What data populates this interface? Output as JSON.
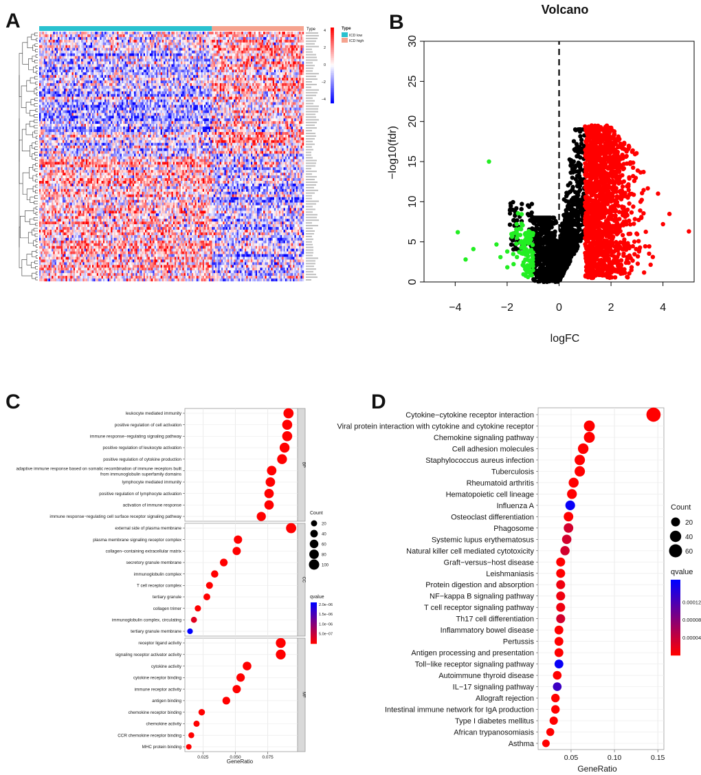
{
  "panel_letters": {
    "a": "A",
    "b": "B",
    "c": "C",
    "d": "D"
  },
  "chart_data": [
    {
      "panel": "A",
      "type": "heatmap",
      "legend": {
        "scale_title": "",
        "scale_ticks": [
          "4",
          "2",
          "0",
          "−2",
          "−4"
        ],
        "type_title": "Type",
        "type_entries": [
          {
            "label": "ICD low",
            "color": "#29c1cf"
          },
          {
            "label": "ICD high",
            "color": "#f5a38f"
          }
        ]
      },
      "annotation_label": "Type",
      "groups": {
        "icd_low_fraction": 0.65,
        "icd_high_fraction": 0.35
      },
      "colors": {
        "low": "#1010ff",
        "mid": "#ffffff",
        "high": "#ff1010"
      }
    },
    {
      "panel": "B",
      "type": "scatter",
      "title": "Volcano",
      "xlabel": "logFC",
      "ylabel": "−log10(fdr)",
      "xlim": [
        -5.2,
        5.2
      ],
      "ylim": [
        0,
        30
      ],
      "xticks": [
        -4,
        -2,
        0,
        2,
        4
      ],
      "xtick_labels": [
        "−4",
        "−2",
        "0",
        "2",
        "4"
      ],
      "yticks": [
        0,
        5,
        10,
        15,
        20,
        25,
        30
      ],
      "ytick_labels": [
        "0",
        "5",
        "10",
        "15",
        "20",
        "25",
        "30"
      ],
      "vline_x": 0,
      "colors": {
        "down": "#22ee22",
        "ns": "#000000",
        "up": "#ff0000"
      },
      "outliers": [
        {
          "x": -2.7,
          "y": 15.0,
          "group": "down"
        },
        {
          "x": -3.9,
          "y": 6.2,
          "group": "down"
        },
        {
          "x": -3.6,
          "y": 2.8,
          "group": "down"
        },
        {
          "x": -3.3,
          "y": 4.1,
          "group": "down"
        },
        {
          "x": 5.0,
          "y": 6.3,
          "group": "up"
        },
        {
          "x": 4.0,
          "y": 7.2,
          "group": "up"
        }
      ]
    },
    {
      "panel": "C",
      "type": "scatter",
      "xlabel": "GeneRatio",
      "xlim": [
        0.011,
        0.098
      ],
      "xticks": [
        0.025,
        0.05,
        0.075
      ],
      "xtick_labels": [
        "0.025",
        "0.050",
        "0.075"
      ],
      "facets": [
        {
          "label": "BP",
          "terms": [
            {
              "term": "leukocyte mediated immunity",
              "ratio": 0.091,
              "count": 95,
              "q": 0.0
            },
            {
              "term": "positive regulation of cell activation",
              "ratio": 0.09,
              "count": 93,
              "q": 0.0
            },
            {
              "term": "immune response−regulating signaling pathway",
              "ratio": 0.09,
              "count": 93,
              "q": 0.0
            },
            {
              "term": "positive regulation of leukocyte activation",
              "ratio": 0.088,
              "count": 90,
              "q": 0.0
            },
            {
              "term": "positive regulation of cytokine production",
              "ratio": 0.086,
              "count": 88,
              "q": 0.0
            },
            {
              "term": "adaptive immune response based on somatic recombination of immune receptors built from immunoglobulin superfamily domains",
              "label_lines": [
                "adaptive immune response based on somatic recombination of immune receptors built",
                "from immunoglobulin superfamily domains"
              ],
              "ratio": 0.078,
              "count": 80,
              "q": 0.0
            },
            {
              "term": "lymphocyte mediated immunity",
              "ratio": 0.077,
              "count": 79,
              "q": 0.0
            },
            {
              "term": "positive regulation of lymphocyte activation",
              "ratio": 0.076,
              "count": 78,
              "q": 0.0
            },
            {
              "term": "activation of immune response",
              "ratio": 0.076,
              "count": 78,
              "q": 0.0
            },
            {
              "term": "immune response−regulating cell surface receptor signaling pathway",
              "ratio": 0.07,
              "count": 72,
              "q": 0.0
            }
          ]
        },
        {
          "label": "CC",
          "terms": [
            {
              "term": "external side of plasma membrane",
              "ratio": 0.093,
              "count": 97,
              "q": 0.0
            },
            {
              "term": "plasma membrane signaling receptor complex",
              "ratio": 0.052,
              "count": 54,
              "q": 0.0
            },
            {
              "term": "collagen−containing extracellular matrix",
              "ratio": 0.051,
              "count": 53,
              "q": 0.0
            },
            {
              "term": "secretory granule membrane",
              "ratio": 0.041,
              "count": 43,
              "q": 0.0
            },
            {
              "term": "immunoglobulin complex",
              "ratio": 0.034,
              "count": 36,
              "q": 0.0
            },
            {
              "term": "T cell receptor complex",
              "ratio": 0.03,
              "count": 31,
              "q": 0.0
            },
            {
              "term": "tertiary granule",
              "ratio": 0.028,
              "count": 29,
              "q": 0.0
            },
            {
              "term": "collagen trimer",
              "ratio": 0.021,
              "count": 22,
              "q": 0.0
            },
            {
              "term": "immunoglobulin complex, circulating",
              "ratio": 0.018,
              "count": 19,
              "q": 2.5e-07
            },
            {
              "term": "tertiary granule membrane",
              "ratio": 0.015,
              "count": 15,
              "q": 2.1e-06
            }
          ]
        },
        {
          "label": "MF",
          "terms": [
            {
              "term": "receptor ligand activity",
              "ratio": 0.085,
              "count": 88,
              "q": 0.0
            },
            {
              "term": "signaling receptor activator activity",
              "ratio": 0.085,
              "count": 88,
              "q": 0.0
            },
            {
              "term": "cytokine activity",
              "ratio": 0.059,
              "count": 61,
              "q": 0.0
            },
            {
              "term": "cytokine receptor binding",
              "ratio": 0.054,
              "count": 56,
              "q": 0.0
            },
            {
              "term": "immune receptor activity",
              "ratio": 0.051,
              "count": 53,
              "q": 0.0
            },
            {
              "term": "antigen binding",
              "ratio": 0.043,
              "count": 44,
              "q": 0.0
            },
            {
              "term": "chemokine receptor binding",
              "ratio": 0.024,
              "count": 25,
              "q": 0.0
            },
            {
              "term": "chemokine activity",
              "ratio": 0.02,
              "count": 21,
              "q": 0.0
            },
            {
              "term": "CCR chemokine receptor binding",
              "ratio": 0.016,
              "count": 17,
              "q": 0.0
            },
            {
              "term": "MHC protein binding",
              "ratio": 0.014,
              "count": 14,
              "q": 0.0
            }
          ]
        }
      ],
      "legend_count": {
        "title": "Count",
        "values": [
          20,
          40,
          60,
          80,
          100
        ],
        "labels": [
          "20",
          "40",
          "60",
          "80",
          "100"
        ]
      },
      "legend_q": {
        "title": "qvalue",
        "max": 2.1e-06,
        "ticks": [
          2e-06,
          1.5e-06,
          1e-06,
          5e-07
        ],
        "labels": [
          "2.0e−06",
          "1.5e−06",
          "1.0e−06",
          "5.0e−07"
        ]
      }
    },
    {
      "panel": "D",
      "type": "scatter",
      "xlabel": "GeneRatio",
      "xlim": [
        0.012,
        0.157
      ],
      "xticks": [
        0.05,
        0.1,
        0.15
      ],
      "xtick_labels": [
        "0.05",
        "0.10",
        "0.15"
      ],
      "terms": [
        {
          "term": "Cytokine−cytokine receptor interaction",
          "ratio": 0.145,
          "count": 68,
          "q": 0.0
        },
        {
          "term": "Viral protein interaction with cytokine and cytokine receptor",
          "ratio": 0.071,
          "count": 33,
          "q": 0.0
        },
        {
          "term": "Chemokine signaling pathway",
          "ratio": 0.071,
          "count": 33,
          "q": 0.0
        },
        {
          "term": "Cell adhesion molecules",
          "ratio": 0.064,
          "count": 30,
          "q": 0.0
        },
        {
          "term": "Staphylococcus aureus infection",
          "ratio": 0.06,
          "count": 28,
          "q": 0.0
        },
        {
          "term": "Tuberculosis",
          "ratio": 0.06,
          "count": 28,
          "q": 0.0
        },
        {
          "term": "Rheumatoid arthritis",
          "ratio": 0.053,
          "count": 25,
          "q": 0.0
        },
        {
          "term": "Hematopoietic cell lineage",
          "ratio": 0.051,
          "count": 24,
          "q": 0.0
        },
        {
          "term": "Influenza A",
          "ratio": 0.049,
          "count": 23,
          "q": 0.000165
        },
        {
          "term": "Osteoclast differentiation",
          "ratio": 0.047,
          "count": 22,
          "q": 0.0
        },
        {
          "term": "Phagosome",
          "ratio": 0.047,
          "count": 22,
          "q": 3e-05
        },
        {
          "term": "Systemic lupus erythematosus",
          "ratio": 0.045,
          "count": 21,
          "q": 3e-05
        },
        {
          "term": "Natural killer cell mediated cytotoxicity",
          "ratio": 0.043,
          "count": 20,
          "q": 3e-05
        },
        {
          "term": "Graft−versus−host disease",
          "ratio": 0.038,
          "count": 18,
          "q": 0.0
        },
        {
          "term": "Leishmaniasis",
          "ratio": 0.038,
          "count": 18,
          "q": 0.0
        },
        {
          "term": "Protein digestion and absorption",
          "ratio": 0.038,
          "count": 18,
          "q": 1e-05
        },
        {
          "term": "NF−kappa B signaling pathway",
          "ratio": 0.038,
          "count": 18,
          "q": 1e-05
        },
        {
          "term": "T cell receptor signaling pathway",
          "ratio": 0.038,
          "count": 18,
          "q": 1e-05
        },
        {
          "term": "Th17 cell differentiation",
          "ratio": 0.038,
          "count": 18,
          "q": 3e-05
        },
        {
          "term": "Inflammatory bowel disease",
          "ratio": 0.036,
          "count": 17,
          "q": 0.0
        },
        {
          "term": "Pertussis",
          "ratio": 0.036,
          "count": 17,
          "q": 0.0
        },
        {
          "term": "Antigen processing and presentation",
          "ratio": 0.036,
          "count": 17,
          "q": 0.0
        },
        {
          "term": "Toll−like receptor signaling pathway",
          "ratio": 0.036,
          "count": 17,
          "q": 0.000165
        },
        {
          "term": "Autoimmune thyroid disease",
          "ratio": 0.034,
          "count": 16,
          "q": 0.0
        },
        {
          "term": "IL−17 signaling pathway",
          "ratio": 0.034,
          "count": 16,
          "q": 0.00013
        },
        {
          "term": "Allograft rejection",
          "ratio": 0.032,
          "count": 15,
          "q": 0.0
        },
        {
          "term": "Intestinal immune network for IgA production",
          "ratio": 0.032,
          "count": 15,
          "q": 0.0
        },
        {
          "term": "Type I diabetes mellitus",
          "ratio": 0.03,
          "count": 14,
          "q": 0.0
        },
        {
          "term": "African trypanosomiasis",
          "ratio": 0.026,
          "count": 12,
          "q": 0.0
        },
        {
          "term": "Asthma",
          "ratio": 0.021,
          "count": 10,
          "q": 0.0
        }
      ],
      "legend_count": {
        "title": "Count",
        "values": [
          20,
          40,
          60
        ],
        "labels": [
          "20",
          "40",
          "60"
        ]
      },
      "legend_q": {
        "title": "qvalue",
        "max": 0.00017,
        "ticks": [
          0.00012,
          8e-05,
          4e-05
        ],
        "labels": [
          "0.00012",
          "0.00008",
          "0.00004"
        ]
      }
    }
  ]
}
